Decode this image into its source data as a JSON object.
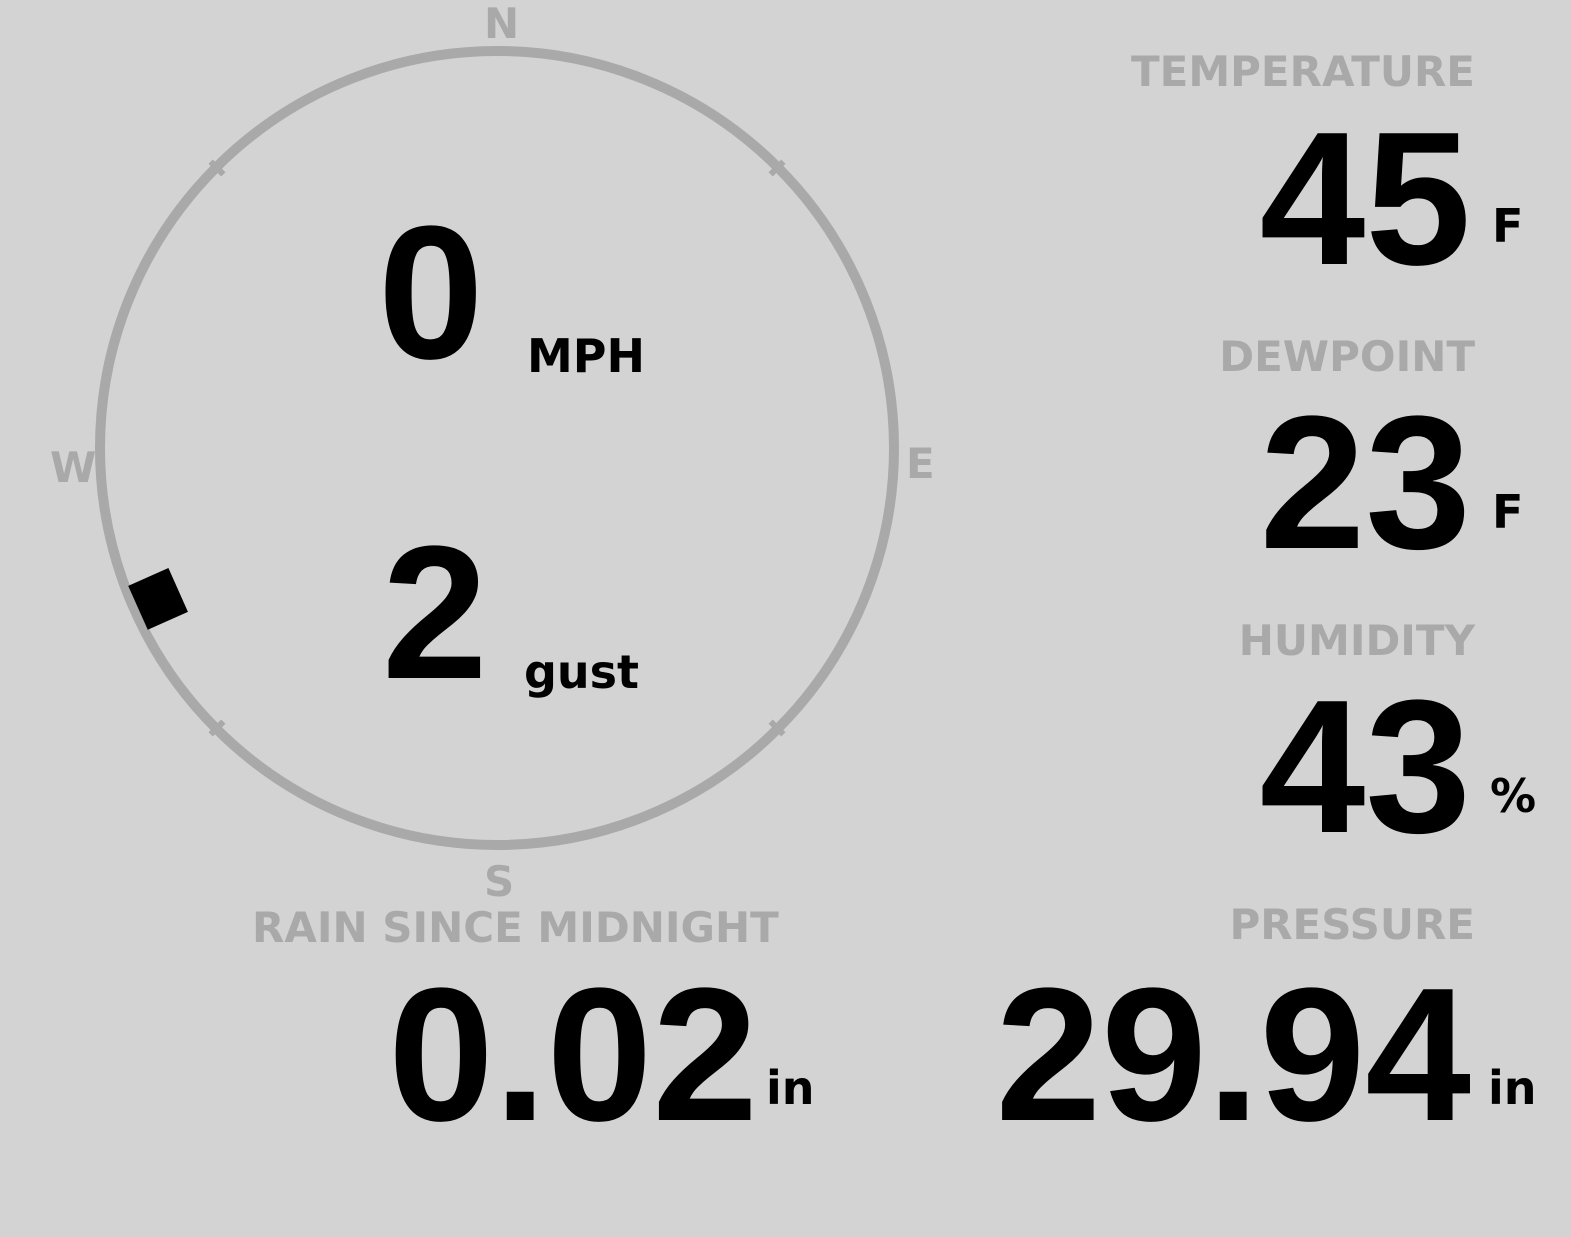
{
  "wind": {
    "speed": "0",
    "speed_unit": "MPH",
    "gust": "2",
    "gust_label": "gust",
    "direction_deg": 246,
    "compass": {
      "n": "N",
      "e": "E",
      "s": "S",
      "w": "W"
    }
  },
  "temperature": {
    "label": "TEMPERATURE",
    "value": "45",
    "unit": "F"
  },
  "dewpoint": {
    "label": "DEWPOINT",
    "value": "23",
    "unit": "F"
  },
  "humidity": {
    "label": "HUMIDITY",
    "value": "43",
    "unit": "%"
  },
  "rain": {
    "label": "RAIN SINCE MIDNIGHT",
    "value": "0.02",
    "unit": "in"
  },
  "pressure": {
    "label": "PRESSURE",
    "value": "29.94",
    "unit": "in"
  },
  "colors": {
    "background": "#d3d3d3",
    "muted": "#a9a9a9",
    "text": "#000000"
  }
}
